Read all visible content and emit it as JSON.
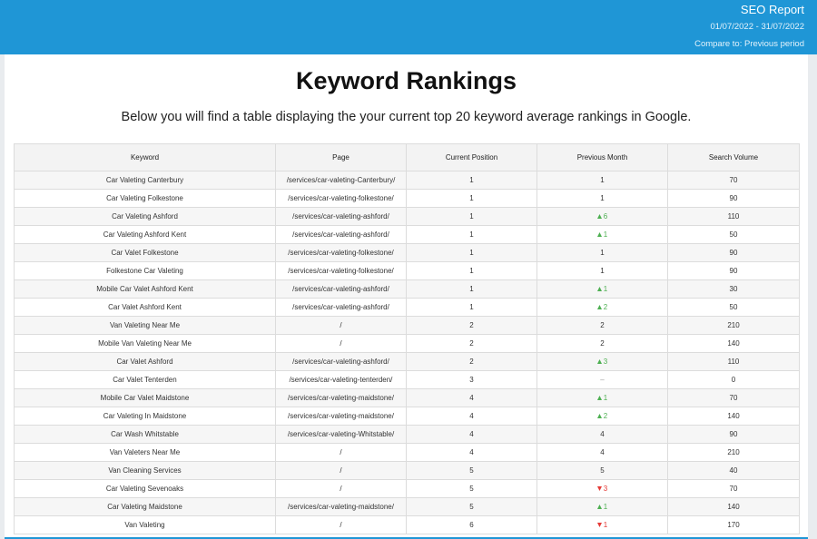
{
  "header": {
    "title": "SEO Report",
    "date_range": "01/07/2022 - 31/07/2022",
    "compare": "Compare to: Previous period"
  },
  "heading": "Keyword Rankings",
  "intro": "Below you will find a table displaying the your current top 20 keyword average rankings in Google.",
  "table": {
    "columns": [
      "Keyword",
      "Page",
      "Current Position",
      "Previous Month",
      "Search Volume"
    ],
    "rows": [
      [
        "Car Valeting Canterbury",
        "/services/car-valeting-Canterbury/",
        "1",
        "1",
        "70"
      ],
      [
        "Car Valeting Folkestone",
        "/services/car-valeting-folkestone/",
        "1",
        "1",
        "90"
      ],
      [
        "Car Valeting Ashford",
        "/services/car-valeting-ashford/",
        "1",
        {
          "text": "6",
          "trend": "up"
        },
        "110"
      ],
      [
        "Car Valeting Ashford Kent",
        "/services/car-valeting-ashford/",
        "1",
        {
          "text": "1",
          "trend": "up"
        },
        "50"
      ],
      [
        "Car Valet Folkestone",
        "/services/car-valeting-folkestone/",
        "1",
        "1",
        "90"
      ],
      [
        "Folkestone Car Valeting",
        "/services/car-valeting-folkestone/",
        "1",
        "1",
        "90"
      ],
      [
        "Mobile Car Valet Ashford Kent",
        "/services/car-valeting-ashford/",
        "1",
        {
          "text": "1",
          "trend": "up"
        },
        "30"
      ],
      [
        "Car Valet Ashford Kent",
        "/services/car-valeting-ashford/",
        "1",
        {
          "text": "2",
          "trend": "up"
        },
        "50"
      ],
      [
        "Van Valeting Near Me",
        "/",
        "2",
        "2",
        "210"
      ],
      [
        "Mobile Van Valeting Near Me",
        "/",
        "2",
        "2",
        "140"
      ],
      [
        "Car Valet Ashford",
        "/services/car-valeting-ashford/",
        "2",
        {
          "text": "3",
          "trend": "up"
        },
        "110"
      ],
      [
        "Car Valet Tenterden",
        "/services/car-valeting-tenterden/",
        "3",
        "–",
        "0"
      ],
      [
        "Mobile Car Valet Maidstone",
        "/services/car-valeting-maidstone/",
        "4",
        {
          "text": "1",
          "trend": "up"
        },
        "70"
      ],
      [
        "Car Valeting In Maidstone",
        "/services/car-valeting-maidstone/",
        "4",
        {
          "text": "2",
          "trend": "up"
        },
        "140"
      ],
      [
        "Car Wash Whitstable",
        "/services/car-valeting-Whitstable/",
        "4",
        "4",
        "90"
      ],
      [
        "Van Valeters Near Me",
        "/",
        "4",
        "4",
        "210"
      ],
      [
        "Van Cleaning Services",
        "/",
        "5",
        "5",
        "40"
      ],
      [
        "Car Valeting Sevenoaks",
        "/",
        "5",
        {
          "text": "3",
          "trend": "down"
        },
        "70"
      ],
      [
        "Car Valeting Maidstone",
        "/services/car-valeting-maidstone/",
        "5",
        {
          "text": "1",
          "trend": "up"
        },
        "140"
      ],
      [
        "Van Valeting",
        "/",
        "6",
        {
          "text": "1",
          "trend": "down"
        },
        "170"
      ]
    ]
  }
}
